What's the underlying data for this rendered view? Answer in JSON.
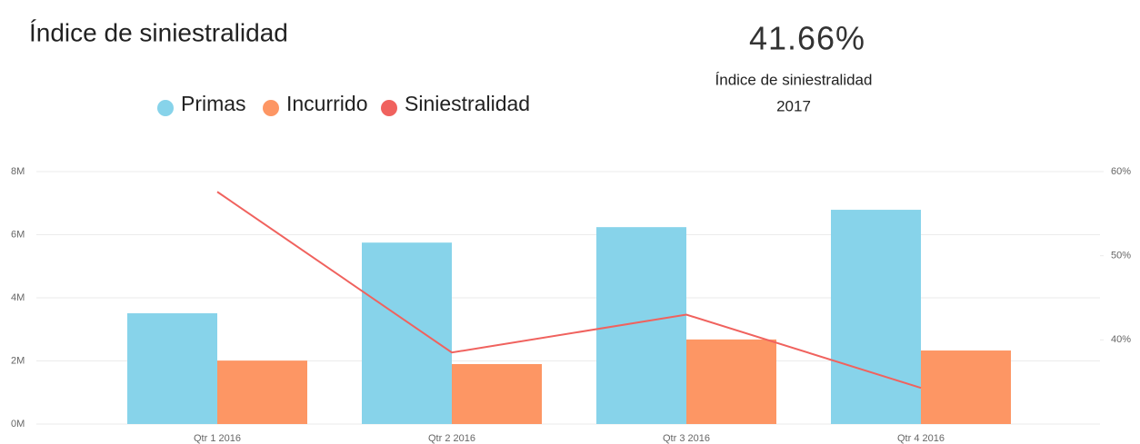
{
  "title": "Índice de siniestralidad",
  "kpi": {
    "value": "41.66%",
    "label": "Índice de siniestralidad",
    "period": "2017"
  },
  "chart_data": {
    "type": "bar",
    "categories": [
      "Qtr 1 2016",
      "Qtr 2 2016",
      "Qtr 3 2016",
      "Qtr 4 2016"
    ],
    "series": [
      {
        "name": "Primas",
        "color": "#87d3ea",
        "values": [
          3.51,
          5.75,
          6.24,
          6.79
        ]
      },
      {
        "name": "Incurrido",
        "color": "#fd9664",
        "values": [
          2.01,
          1.9,
          2.68,
          2.33
        ]
      },
      {
        "name": "Siniestralidad",
        "color": "#f0625e",
        "type": "line",
        "axis": "y2",
        "values": [
          57.6,
          38.5,
          43.0,
          34.3
        ]
      }
    ],
    "ylim": [
      0,
      8
    ],
    "yticks": [
      {
        "value": 0,
        "label": "0M"
      },
      {
        "value": 2,
        "label": "2M"
      },
      {
        "value": 4,
        "label": "4M"
      },
      {
        "value": 6,
        "label": "6M"
      },
      {
        "value": 8,
        "label": "8M"
      }
    ],
    "y2lim": [
      30,
      60
    ],
    "y2ticks": [
      {
        "value": 40,
        "label": "40%"
      },
      {
        "value": 50,
        "label": "50%"
      },
      {
        "value": 60,
        "label": "60%"
      }
    ],
    "grid": true
  }
}
